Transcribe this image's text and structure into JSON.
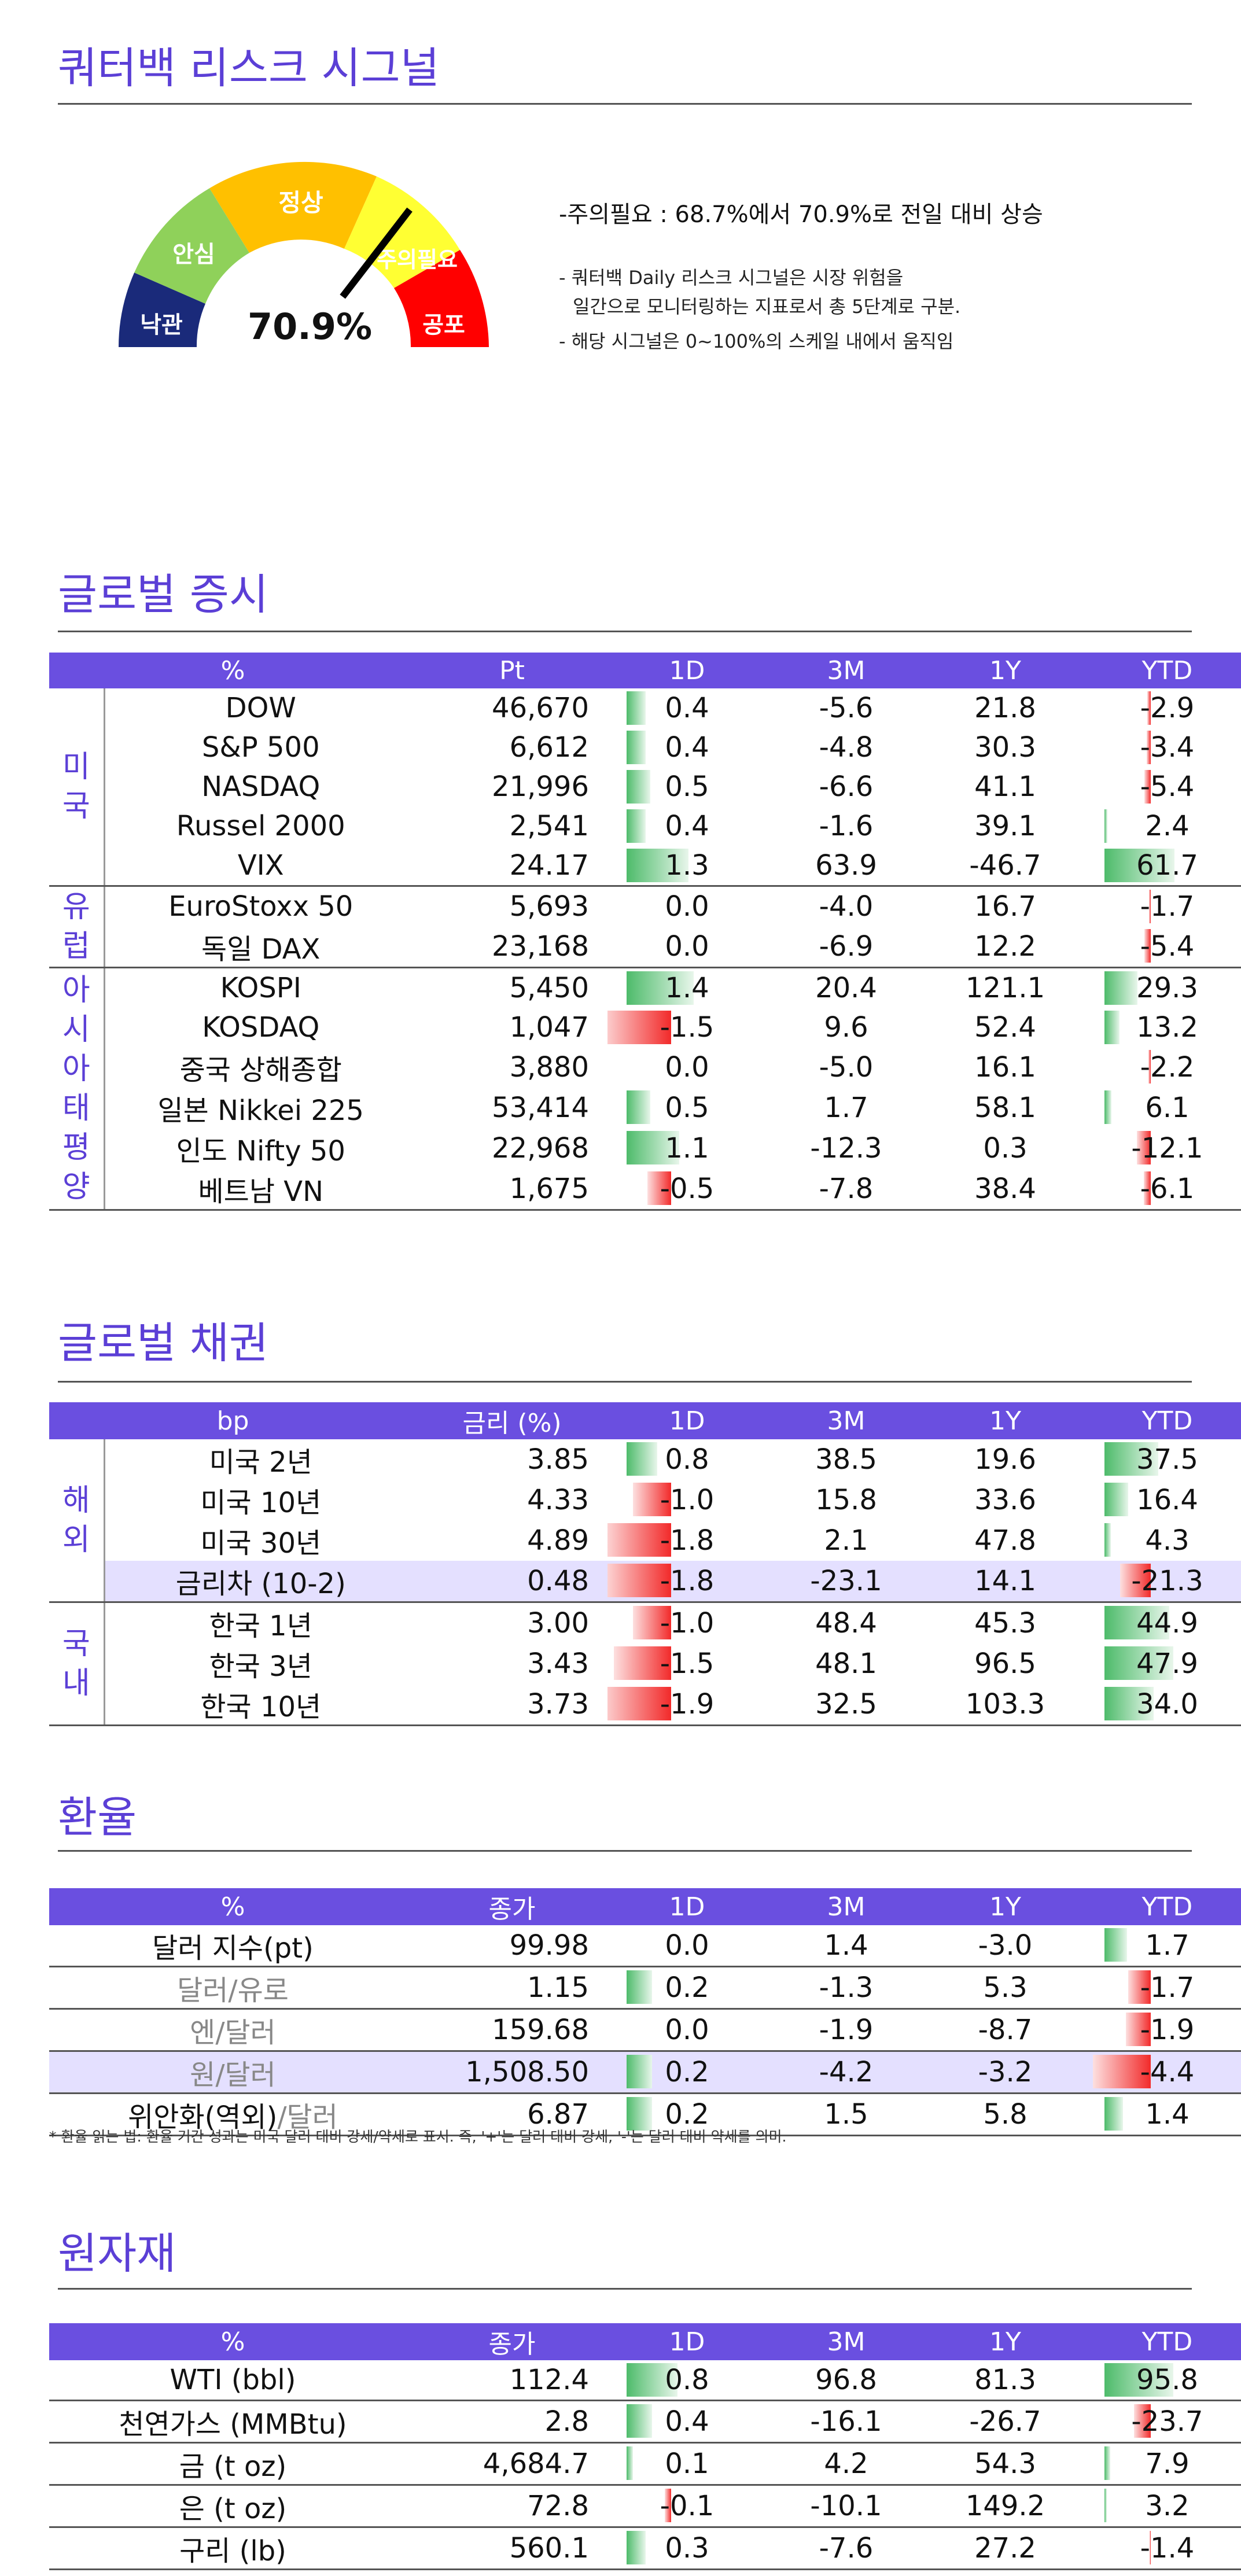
{
  "risk": {
    "title": "쿼터백 리스크 시그널",
    "value": "70.9%",
    "value_num": 70.9,
    "levels": [
      "낙관",
      "안심",
      "정상",
      "주의필요",
      "공포"
    ],
    "headline": "-주의필요 : 68.7%에서 70.9%로 전일 대비 상승",
    "note1": "- 쿼터백 Daily 리스크 시그널은 시장 위험을",
    "note2": "일간으로 모니터링하는 지표로서 총 5단계로 구분.",
    "note3": "- 해당 시그널은 0~100%의 스케일 내에서 움직임",
    "colors": {
      "낙관": "#1a2a7a",
      "안심": "#8fd15a",
      "정상": "#ffc000",
      "주의필요": "#ffff33",
      "공포": "#ff0000"
    }
  },
  "equity": {
    "title": "글로벌 증시",
    "headers": [
      "%",
      "Pt",
      "1D",
      "3M",
      "1Y",
      "YTD"
    ],
    "groups": [
      {
        "region": "미국",
        "rows": [
          {
            "name": "DOW",
            "value": "46,670",
            "d1": 0.4,
            "m3": "-5.6",
            "y1": "21.8",
            "ytd": -2.9
          },
          {
            "name": "S&P 500",
            "value": "6,612",
            "d1": 0.4,
            "m3": "-4.8",
            "y1": "30.3",
            "ytd": -3.4
          },
          {
            "name": "NASDAQ",
            "value": "21,996",
            "d1": 0.5,
            "m3": "-6.6",
            "y1": "41.1",
            "ytd": -5.4
          },
          {
            "name": "Russel 2000",
            "value": "2,541",
            "d1": 0.4,
            "m3": "-1.6",
            "y1": "39.1",
            "ytd": 2.4
          },
          {
            "name": "VIX",
            "value": "24.17",
            "d1": 1.3,
            "m3": "63.9",
            "y1": "-46.7",
            "ytd": 61.7
          }
        ]
      },
      {
        "region": "유럽",
        "rows": [
          {
            "name": "EuroStoxx 50",
            "value": "5,693",
            "d1": 0.0,
            "m3": "-4.0",
            "y1": "16.7",
            "ytd": -1.7
          },
          {
            "name": "독일 DAX",
            "value": "23,168",
            "d1": 0.0,
            "m3": "-6.9",
            "y1": "12.2",
            "ytd": -5.4
          }
        ]
      },
      {
        "region": "아시아태평양",
        "rows": [
          {
            "name": "KOSPI",
            "value": "5,450",
            "d1": 1.4,
            "m3": "20.4",
            "y1": "121.1",
            "ytd": 29.3
          },
          {
            "name": "KOSDAQ",
            "value": "1,047",
            "d1": -1.5,
            "m3": "9.6",
            "y1": "52.4",
            "ytd": 13.2
          },
          {
            "name": "중국 상해종합",
            "value": "3,880",
            "d1": 0.0,
            "m3": "-5.0",
            "y1": "16.1",
            "ytd": -2.2
          },
          {
            "name": "일본 Nikkei 225",
            "value": "53,414",
            "d1": 0.5,
            "m3": "1.7",
            "y1": "58.1",
            "ytd": 6.1
          },
          {
            "name": "인도 Nifty 50",
            "value": "22,968",
            "d1": 1.1,
            "m3": "-12.3",
            "y1": "0.3",
            "ytd": -12.1
          },
          {
            "name": "베트남 VN",
            "value": "1,675",
            "d1": -0.5,
            "m3": "-7.8",
            "y1": "38.4",
            "ytd": -6.1
          }
        ]
      }
    ]
  },
  "bonds": {
    "title": "글로벌 채권",
    "headers": [
      "bp",
      "금리 (%)",
      "1D",
      "3M",
      "1Y",
      "YTD"
    ],
    "groups": [
      {
        "region": "해외",
        "rows": [
          {
            "name": "미국 2년",
            "value": "3.85",
            "d1": 0.8,
            "m3": "38.5",
            "y1": "19.6",
            "ytd": 37.5
          },
          {
            "name": "미국 10년",
            "value": "4.33",
            "d1": -1.0,
            "m3": "15.8",
            "y1": "33.6",
            "ytd": 16.4
          },
          {
            "name": "미국 30년",
            "value": "4.89",
            "d1": -1.8,
            "m3": "2.1",
            "y1": "47.8",
            "ytd": 4.3
          },
          {
            "name": "금리차 (10-2)",
            "value": "0.48",
            "d1": -1.8,
            "m3": "-23.1",
            "y1": "14.1",
            "ytd": -21.3,
            "highlight": true
          }
        ]
      },
      {
        "region": "국내",
        "rows": [
          {
            "name": "한국 1년",
            "value": "3.00",
            "d1": -1.0,
            "m3": "48.4",
            "y1": "45.3",
            "ytd": 44.9
          },
          {
            "name": "한국 3년",
            "value": "3.43",
            "d1": -1.5,
            "m3": "48.1",
            "y1": "96.5",
            "ytd": 47.9
          },
          {
            "name": "한국 10년",
            "value": "3.73",
            "d1": -1.9,
            "m3": "32.5",
            "y1": "103.3",
            "ytd": 34.0
          }
        ]
      }
    ]
  },
  "fx": {
    "title": "환율",
    "headers": [
      "%",
      "종가",
      "1D",
      "3M",
      "1Y",
      "YTD"
    ],
    "rows": [
      {
        "a": "달러 지수(pt)",
        "b": "",
        "value": "99.98",
        "d1": 0.0,
        "m3": "1.4",
        "y1": "-3.0",
        "ytd": 1.7
      },
      {
        "a": "달러",
        "b": "/유로",
        "value": "1.15",
        "d1": 0.2,
        "m3": "-1.3",
        "y1": "5.3",
        "ytd": -1.7
      },
      {
        "a": "엔",
        "b": "/달러",
        "value": "159.68",
        "d1": 0.0,
        "m3": "-1.9",
        "y1": "-8.7",
        "ytd": -1.9
      },
      {
        "a": "원",
        "b": "/달러",
        "value": "1,508.50",
        "d1": 0.2,
        "m3": "-4.2",
        "y1": "-3.2",
        "ytd": -4.4,
        "highlight": true
      },
      {
        "a": "위안화(역외)",
        "b": "/달러",
        "value": "6.87",
        "d1": 0.2,
        "m3": "1.5",
        "y1": "5.8",
        "ytd": 1.4
      }
    ],
    "footnote": "* 환율 읽는 법: 환율 기간 성과는 미국 달러 대비 강세/약세로 표시. 즉, '+'는 달러 대비 강세, '-'는 달러 대비 약세를 의미."
  },
  "commodities": {
    "title": "원자재",
    "headers": [
      "%",
      "종가",
      "1D",
      "3M",
      "1Y",
      "YTD"
    ],
    "rows": [
      {
        "name": "WTI (bbl)",
        "value": "112.4",
        "d1": 0.8,
        "m3": "96.8",
        "y1": "81.3",
        "ytd": 95.8
      },
      {
        "name": "천연가스 (MMBtu)",
        "value": "2.8",
        "d1": 0.4,
        "m3": "-16.1",
        "y1": "-26.7",
        "ytd": -23.7
      },
      {
        "name": "금 (t oz)",
        "value": "4,684.7",
        "d1": 0.1,
        "m3": "4.2",
        "y1": "54.3",
        "ytd": 7.9
      },
      {
        "name": "은 (t oz)",
        "value": "72.8",
        "d1": -0.1,
        "m3": "-10.1",
        "y1": "149.2",
        "ytd": 3.2
      },
      {
        "name": "구리 (lb)",
        "value": "560.1",
        "d1": 0.3,
        "m3": "-7.6",
        "y1": "27.2",
        "ytd": -1.4
      }
    ]
  }
}
